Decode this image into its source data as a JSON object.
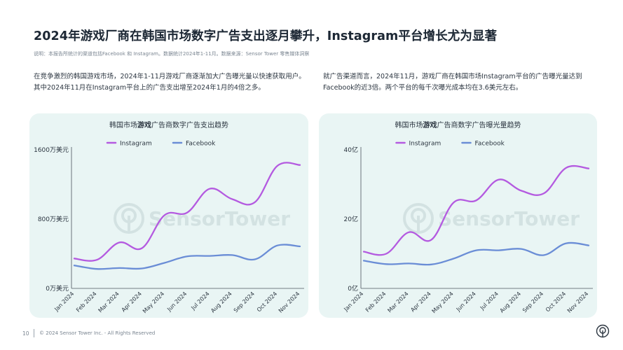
{
  "page": {
    "title": "2024年游戏厂商在韩国市场数字广告支出逐月攀升，Instagram平台增长尤为显著",
    "note": "说明：本报告所统计的渠道包括Facebook 和 Instagram。数据统计2024年1-11月。数据来源：Sensor Tower 零售媒体洞察",
    "para_left": "在竞争激烈的韩国游戏市场，2024年1-11月游戏厂商逐渐加大广告曝光量以快速获取用户。其中2024年11月在Instagram平台上的广告支出增至2024年1月的4倍之多。",
    "para_right": "就广告渠道而言，2024年11月，游戏厂商在韩国市场Instagram平台的广告曝光量达到Facebook的近3倍。两个平台的每千次曝光成本均在3.6美元左右。",
    "footer_page": "10",
    "footer_copy": "© 2024 Sensor Tower Inc. - All Rights Reserved",
    "watermark": "SensorTower"
  },
  "colors": {
    "instagram": "#b45ae0",
    "facebook": "#6a8dd6",
    "panel_bg": "#e9f5f4",
    "axis": "#4a545e"
  },
  "chart_data": [
    {
      "type": "line",
      "title": "韩国市场游戏广告商数字广告支出趋势",
      "title_bold_part": "游戏",
      "categories": [
        "Jan 2024",
        "Feb 2024",
        "Mar 2024",
        "Apr 2024",
        "May 2024",
        "Jun 2024",
        "Jul 2024",
        "Aug 2024",
        "Sep 2024",
        "Oct 2024",
        "Nov 2024"
      ],
      "series": [
        {
          "name": "Instagram",
          "values": [
            345,
            330,
            530,
            465,
            845,
            875,
            1150,
            1030,
            995,
            1415,
            1425
          ]
        },
        {
          "name": "Facebook",
          "values": [
            265,
            225,
            235,
            230,
            295,
            370,
            375,
            385,
            335,
            495,
            485
          ]
        }
      ],
      "y_ticks": [
        {
          "value": 0,
          "label": "0万美元"
        },
        {
          "value": 800,
          "label": "800万美元"
        },
        {
          "value": 1600,
          "label": "1600万美元"
        }
      ],
      "ylim": [
        0,
        1600
      ],
      "legend": "top-center",
      "grid": false
    },
    {
      "type": "line",
      "title": "韩国市场游戏广告商数字广告曝光量趋势",
      "title_bold_part": "游戏",
      "categories": [
        "Jan 2024",
        "Feb 2024",
        "Mar 2024",
        "Apr 2024",
        "May 2024",
        "Jun 2024",
        "Jul 2024",
        "Aug 2024",
        "Sep 2024",
        "Oct 2024",
        "Nov 2024"
      ],
      "series": [
        {
          "name": "Instagram",
          "values": [
            10.6,
            10.0,
            16.2,
            14.0,
            24.8,
            25.4,
            31.4,
            28.2,
            27.4,
            34.8,
            34.6
          ]
        },
        {
          "name": "Facebook",
          "values": [
            8.0,
            7.0,
            7.2,
            6.9,
            8.6,
            11.0,
            11.0,
            11.4,
            9.6,
            13.0,
            12.4
          ]
        }
      ],
      "y_ticks": [
        {
          "value": 0,
          "label": "0亿"
        },
        {
          "value": 20,
          "label": "20亿"
        },
        {
          "value": 40,
          "label": "40亿"
        }
      ],
      "ylim": [
        0,
        40
      ],
      "legend": "top-center",
      "grid": false
    }
  ]
}
